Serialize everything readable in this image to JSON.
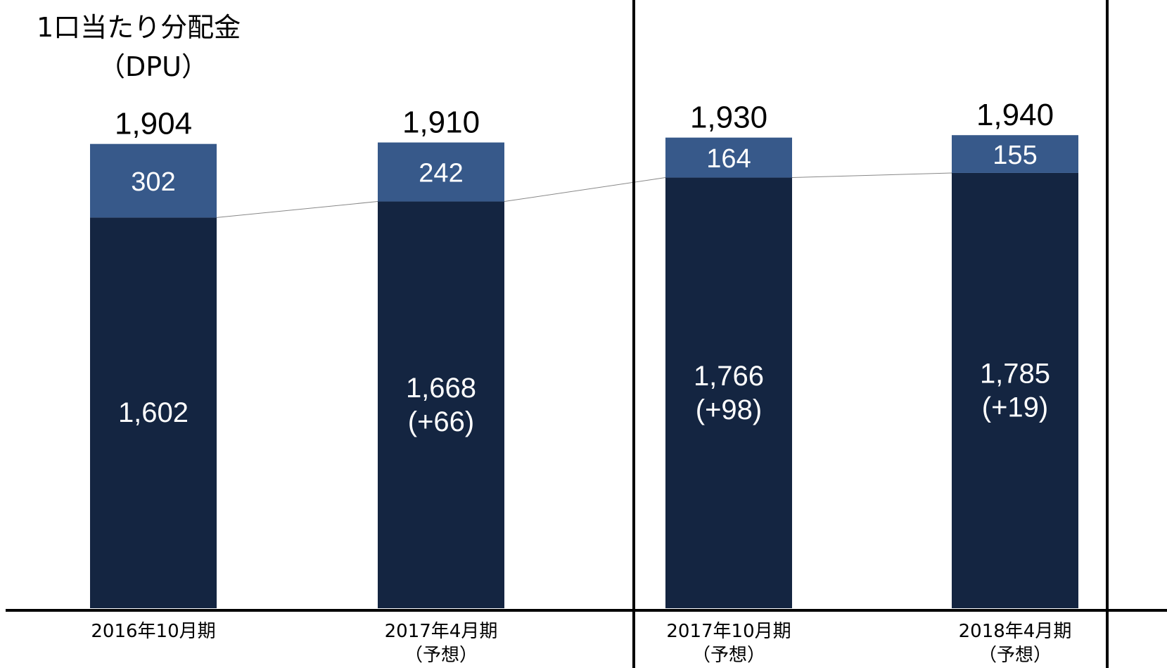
{
  "title": "1口当たり分配金",
  "subtitle": "（DPU）",
  "colors": {
    "bottom": "#142541",
    "top": "#37598a",
    "axis": "#000000",
    "connector": "#888888",
    "label_inside": "#ffffff",
    "label_total": "#000000"
  },
  "chart_data": {
    "type": "bar",
    "stacked": true,
    "categories": [
      "2016年10月期",
      "2017年4月期（予想）",
      "2017年10月期（予想）",
      "2018年4月期（予想）"
    ],
    "category_lines": [
      [
        "2016年10月期"
      ],
      [
        "2017年4月期",
        "（予想）"
      ],
      [
        "2017年10月期",
        "（予想）"
      ],
      [
        "2018年4月期",
        "（予想）"
      ]
    ],
    "series": [
      {
        "values": [
          1602,
          1668,
          1766,
          1785
        ],
        "labels": [
          [
            "1,602"
          ],
          [
            "1,668",
            "(+66)"
          ],
          [
            "1,766",
            "(+98)"
          ],
          [
            "1,785",
            "(+19)"
          ]
        ]
      },
      {
        "values": [
          302,
          242,
          164,
          155
        ],
        "labels": [
          [
            "302"
          ],
          [
            "242"
          ],
          [
            "164"
          ],
          [
            "155"
          ]
        ]
      }
    ],
    "totals": [
      1904,
      1910,
      1930,
      1940
    ],
    "total_labels": [
      "1,904",
      "1,910",
      "1,930",
      "1,940"
    ],
    "connector_line": true,
    "grid": false,
    "legend": "none",
    "xlabel": "",
    "ylabel": "",
    "dividers_after_category": [
      1,
      3
    ]
  }
}
